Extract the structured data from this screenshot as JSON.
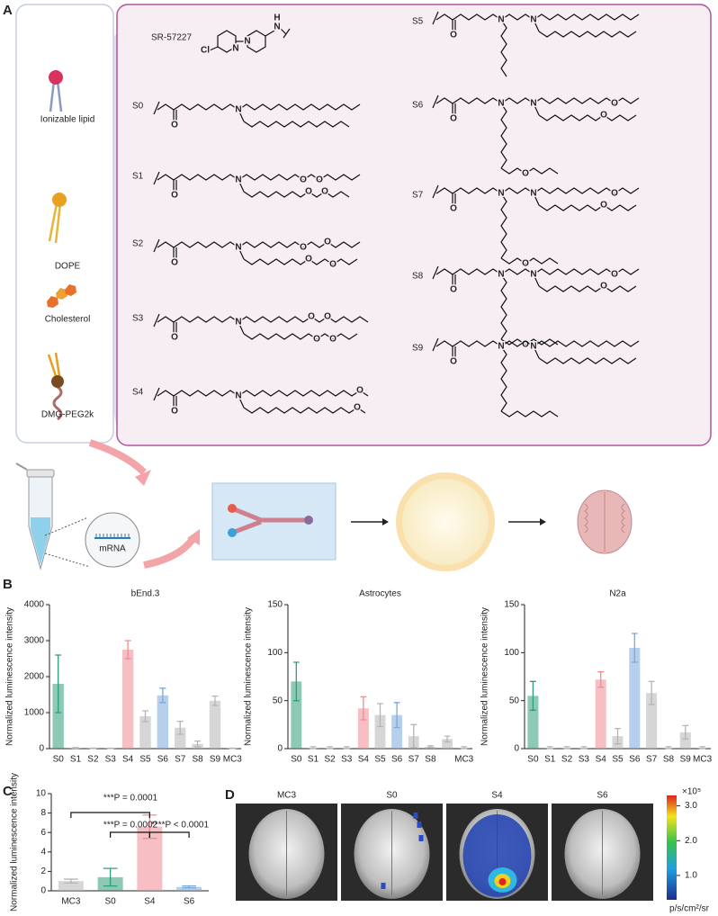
{
  "figure": {
    "panels": [
      "A",
      "B",
      "C",
      "D"
    ],
    "components": [
      "Ionizable lipid",
      "DOPE",
      "Cholesterol",
      "DMG-PEG2k"
    ],
    "compounds": [
      "SR-57227",
      "S0",
      "S1",
      "S2",
      "S3",
      "S4",
      "S5",
      "S6",
      "S7",
      "S8",
      "S9"
    ],
    "atoms": [
      "N",
      "O",
      "Cl",
      "H"
    ],
    "mrna": "mRNA"
  },
  "chart_data": [
    {
      "type": "bar",
      "title": "bEnd.3",
      "ylabel": "Normalized luminescence intensity",
      "categories": [
        "S0",
        "S1",
        "S2",
        "S3",
        "S4",
        "S5",
        "S6",
        "S7",
        "S8",
        "S9",
        "MC3"
      ],
      "values": [
        1800,
        20,
        10,
        10,
        2750,
        900,
        1480,
        580,
        130,
        1330,
        10
      ],
      "errors": [
        800,
        10,
        5,
        5,
        250,
        150,
        200,
        180,
        80,
        130,
        5
      ],
      "colors": [
        "#2e9e78",
        "#b5b5b5",
        "#b5b5b5",
        "#b5b5b5",
        "#f08a93",
        "#b5b5b5",
        "#7aa7dc",
        "#b5b5b5",
        "#b5b5b5",
        "#b5b5b5",
        "#b5b5b5"
      ],
      "ylim": [
        0,
        4000
      ],
      "yticks": [
        0,
        1000,
        2000,
        3000,
        4000
      ]
    },
    {
      "type": "bar",
      "title": "Astrocytes",
      "ylabel": "Normalized luminescence intensity",
      "categories": [
        "S0",
        "S1",
        "S2",
        "S3",
        "S4",
        "S5",
        "S6",
        "S7",
        "S8",
        null,
        "MC3"
      ],
      "values": [
        70,
        1,
        1,
        1,
        42,
        35,
        35,
        13,
        2,
        10,
        1
      ],
      "errors": [
        20,
        1,
        1,
        1,
        12,
        12,
        13,
        12,
        1,
        3,
        1
      ],
      "colors": [
        "#2e9e78",
        "#b5b5b5",
        "#b5b5b5",
        "#b5b5b5",
        "#f08a93",
        "#b5b5b5",
        "#7aa7dc",
        "#b5b5b5",
        "#b5b5b5",
        "#b5b5b5",
        "#b5b5b5"
      ],
      "ylim": [
        0,
        150
      ],
      "yticks": [
        0,
        50,
        100,
        150
      ]
    },
    {
      "type": "bar",
      "title": "N2a",
      "ylabel": "Normalized luminescence intensity",
      "categories": [
        "S0",
        "S1",
        "S2",
        "S3",
        "S4",
        "S5",
        "S6",
        "S7",
        "S8",
        "S9",
        "MC3"
      ],
      "values": [
        55,
        1,
        1,
        1,
        72,
        13,
        105,
        58,
        1,
        17,
        1
      ],
      "errors": [
        15,
        1,
        1,
        1,
        8,
        8,
        15,
        12,
        1,
        7,
        1
      ],
      "colors": [
        "#2e9e78",
        "#b5b5b5",
        "#b5b5b5",
        "#b5b5b5",
        "#f08a93",
        "#b5b5b5",
        "#7aa7dc",
        "#b5b5b5",
        "#b5b5b5",
        "#b5b5b5",
        "#b5b5b5"
      ],
      "ylim": [
        0,
        150
      ],
      "yticks": [
        0,
        50,
        100,
        150
      ]
    },
    {
      "type": "bar",
      "ylabel": "Normalized luminescence intensity",
      "categories": [
        "MC3",
        "S0",
        "S4",
        "S6"
      ],
      "values": [
        1.0,
        1.4,
        6.6,
        0.4
      ],
      "errors": [
        0.2,
        0.9,
        1.2,
        0.1
      ],
      "colors": [
        "#b5b5b5",
        "#2e9e78",
        "#f08a93",
        "#7aa7dc"
      ],
      "ylim": [
        0,
        10
      ],
      "yticks": [
        0,
        2,
        4,
        6,
        8,
        10
      ],
      "annotations": [
        "***P = 0.0001",
        "***P = 0.0002",
        "****P < 0.0001"
      ]
    },
    {
      "type": "image",
      "categories": [
        "MC3",
        "S0",
        "S4",
        "S6"
      ],
      "colorbar": {
        "clim": [
          0.3,
          3.3
        ],
        "ticks": [
          {
            "value": 1,
            "label": "1.0"
          },
          {
            "value": 2,
            "label": "2.0"
          },
          {
            "value": 3,
            "label": "3.0"
          }
        ],
        "multiplier": "×10⁵",
        "unit": "p/s/cm²/sr"
      }
    }
  ]
}
